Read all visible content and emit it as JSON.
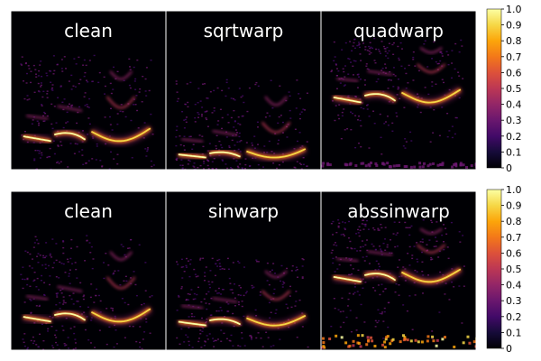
{
  "chart_data": [
    {
      "type": "heatmap",
      "row": 1,
      "panels": [
        {
          "title": "clean",
          "warp": "none"
        },
        {
          "title": "sqrtwarp",
          "warp": "sqrt"
        },
        {
          "title": "quadwarp",
          "warp": "quad"
        }
      ],
      "colormap": "inferno",
      "colorbar": {
        "range": [
          0,
          1
        ],
        "ticks": [
          "0",
          "0.1",
          "0.2",
          "0.3",
          "0.4",
          "0.5",
          "0.6",
          "0.7",
          "0.8",
          "0.9",
          "1.0"
        ]
      }
    },
    {
      "type": "heatmap",
      "row": 2,
      "panels": [
        {
          "title": "clean",
          "warp": "none"
        },
        {
          "title": "sinwarp",
          "warp": "sin"
        },
        {
          "title": "abssinwarp",
          "warp": "abssin"
        }
      ],
      "colormap": "inferno",
      "colorbar": {
        "range": [
          0,
          1
        ],
        "ticks": [
          "0",
          "0.1",
          "0.2",
          "0.3",
          "0.4",
          "0.5",
          "0.6",
          "0.7",
          "0.8",
          "0.9",
          "1.0"
        ]
      }
    }
  ]
}
